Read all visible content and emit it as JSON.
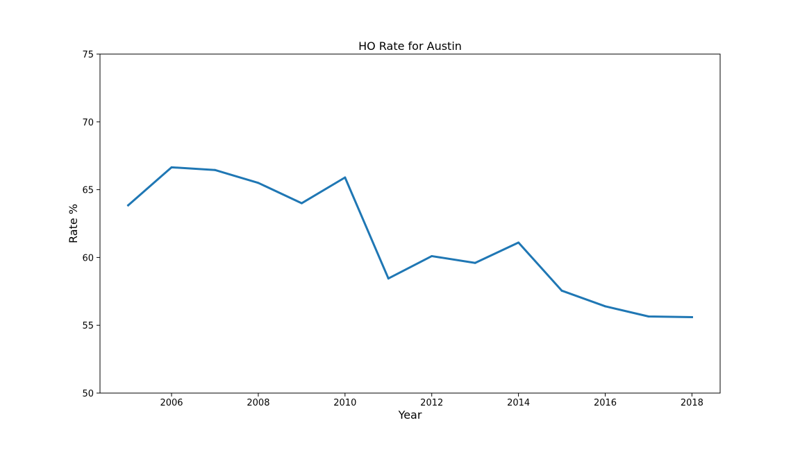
{
  "chart_data": {
    "type": "line",
    "title": "HO Rate for Austin",
    "xlabel": "Year",
    "ylabel": "Rate %",
    "xlim": [
      2004.35,
      2018.65
    ],
    "ylim": [
      50,
      75
    ],
    "x_ticks": [
      2006,
      2008,
      2010,
      2012,
      2014,
      2016,
      2018
    ],
    "y_ticks": [
      50,
      55,
      60,
      65,
      70,
      75
    ],
    "grid": false,
    "legend": "none",
    "series": [
      {
        "color": "#1f77b4",
        "x": [
          2005,
          2006,
          2007,
          2008,
          2009,
          2010,
          2011,
          2012,
          2013,
          2014,
          2015,
          2016,
          2017,
          2018
        ],
        "y": [
          63.85,
          66.65,
          66.45,
          65.5,
          64.0,
          65.9,
          58.45,
          60.1,
          59.6,
          61.1,
          57.55,
          56.4,
          55.65,
          55.6
        ]
      }
    ]
  }
}
